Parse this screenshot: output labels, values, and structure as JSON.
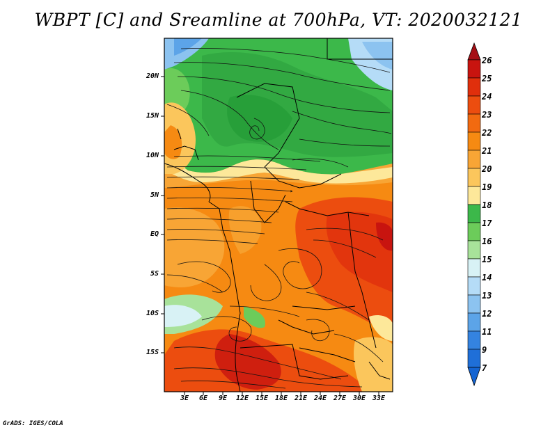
{
  "title": "WBPT [C] and Sreamline at 700hPa, VT: 2020032121",
  "credit": "GrADS: IGES/COLA",
  "lat_labels": [
    "20N",
    "15N",
    "10N",
    "5N",
    "EQ",
    "5S",
    "10S",
    "15S"
  ],
  "lon_labels": [
    "3E",
    "6E",
    "9E",
    "12E",
    "15E",
    "18E",
    "21E",
    "24E",
    "27E",
    "30E",
    "33E"
  ],
  "colorbar": {
    "labels": [
      "26",
      "25",
      "24",
      "23",
      "22",
      "21",
      "20",
      "19",
      "18",
      "17",
      "16",
      "15",
      "14",
      "13",
      "12",
      "11",
      "9",
      "7"
    ],
    "colors": [
      "#a50f15",
      "#c8140f",
      "#e02f0c",
      "#ec4d0f",
      "#f26a10",
      "#f68a12",
      "#f8a535",
      "#fbc65c",
      "#fde89a",
      "#3cb84a",
      "#6ccc5a",
      "#a8e29a",
      "#d8f2f5",
      "#b5dcf7",
      "#8cc3f0",
      "#5ca4e8",
      "#3483e0",
      "#1464d2"
    ]
  }
}
